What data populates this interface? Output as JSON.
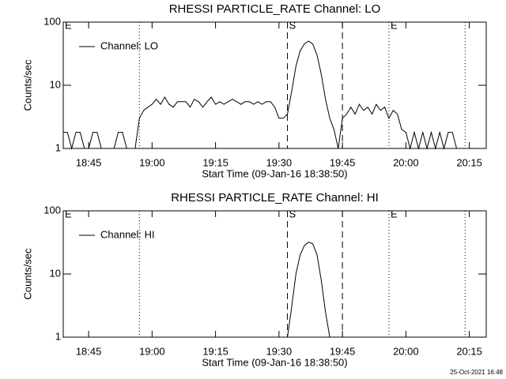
{
  "chart_data": [
    {
      "type": "line",
      "title": "RHESSI PARTICLE_RATE Channel: LO",
      "x_label": "Start Time (09-Jan-16 18:38:50)",
      "y_label": "Counts/sec",
      "log_y": true,
      "legend": "upper left",
      "xlim": [
        "18:39",
        "20:19"
      ],
      "xticks": [
        "18:45",
        "19:00",
        "19:15",
        "19:30",
        "19:45",
        "20:00",
        "20:15"
      ],
      "ylim": [
        1,
        100
      ],
      "yticks": [
        1,
        10,
        100
      ],
      "markers": [
        {
          "x": "18:39",
          "style": "none",
          "label": "E"
        },
        {
          "x": "18:57",
          "style": "dotted"
        },
        {
          "x": "19:32",
          "style": "dashed",
          "label": "S"
        },
        {
          "x": "19:45",
          "style": "dashed"
        },
        {
          "x": "19:56",
          "style": "dotted",
          "label": "E"
        },
        {
          "x": "20:14",
          "style": "dotted"
        }
      ],
      "x": [
        "18:39",
        "18:40",
        "18:41",
        "18:42",
        "18:43",
        "18:44",
        "18:45",
        "18:46",
        "18:47",
        "18:48",
        "18:49",
        "18:50",
        "18:51",
        "18:52",
        "18:53",
        "18:54",
        "18:55",
        "18:56",
        "18:57",
        "18:58",
        "18:59",
        "19:00",
        "19:01",
        "19:02",
        "19:03",
        "19:04",
        "19:05",
        "19:06",
        "19:07",
        "19:08",
        "19:09",
        "19:10",
        "19:11",
        "19:12",
        "19:13",
        "19:14",
        "19:15",
        "19:16",
        "19:17",
        "19:18",
        "19:19",
        "19:20",
        "19:21",
        "19:22",
        "19:23",
        "19:24",
        "19:25",
        "19:26",
        "19:27",
        "19:28",
        "19:29",
        "19:30",
        "19:31",
        "19:32",
        "19:33",
        "19:34",
        "19:35",
        "19:36",
        "19:37",
        "19:38",
        "19:39",
        "19:40",
        "19:41",
        "19:42",
        "19:43",
        "19:44",
        "19:45",
        "19:46",
        "19:47",
        "19:48",
        "19:49",
        "19:50",
        "19:51",
        "19:52",
        "19:53",
        "19:54",
        "19:55",
        "19:56",
        "19:57",
        "19:58",
        "19:59",
        "20:00",
        "20:01",
        "20:02",
        "20:03",
        "20:04",
        "20:05",
        "20:06",
        "20:07",
        "20:08",
        "20:09",
        "20:10",
        "20:11",
        "20:12",
        "20:13",
        "20:14",
        "20:15",
        "20:16",
        "20:17",
        "20:18",
        "20:19"
      ],
      "series": [
        {
          "name": "Channel: LO",
          "color": "#000000",
          "values": [
            1.8,
            1.8,
            1,
            1.8,
            1.8,
            1,
            1,
            1.8,
            1.8,
            1,
            1,
            1,
            1,
            1.8,
            1.8,
            1,
            1,
            1,
            3,
            4,
            4.5,
            5,
            6,
            5,
            6.5,
            5,
            4.5,
            5.5,
            5.5,
            5.5,
            4.5,
            6,
            5.5,
            4.5,
            5.5,
            6.5,
            5,
            5.5,
            5,
            5.5,
            6,
            5.5,
            5,
            5.5,
            5.5,
            5,
            5.5,
            5,
            5.5,
            5.5,
            4.5,
            3,
            3,
            3.5,
            8,
            20,
            35,
            45,
            50,
            45,
            30,
            15,
            6,
            3,
            2,
            1,
            3,
            3.5,
            4.5,
            3.5,
            5,
            4,
            4.5,
            3.5,
            5,
            4,
            4.5,
            3,
            4,
            3.5,
            2,
            1.8,
            1,
            1.8,
            1,
            1.8,
            1,
            1.8,
            1,
            1.8,
            1,
            1.8,
            1.8,
            1,
            1,
            1,
            1,
            1,
            1,
            1,
            1
          ]
        }
      ]
    },
    {
      "type": "line",
      "title": "RHESSI PARTICLE_RATE Channel: HI",
      "x_label": "Start Time (09-Jan-16 18:38:50)",
      "y_label": "Counts/sec",
      "log_y": true,
      "legend": "upper left",
      "xlim": [
        "18:39",
        "20:19"
      ],
      "xticks": [
        "18:45",
        "19:00",
        "19:15",
        "19:30",
        "19:45",
        "20:00",
        "20:15"
      ],
      "ylim": [
        1,
        100
      ],
      "yticks": [
        1,
        10,
        100
      ],
      "markers": [
        {
          "x": "18:39",
          "style": "none",
          "label": "E"
        },
        {
          "x": "18:57",
          "style": "dotted"
        },
        {
          "x": "19:32",
          "style": "dashed",
          "label": "S"
        },
        {
          "x": "19:45",
          "style": "dashed"
        },
        {
          "x": "19:56",
          "style": "dotted",
          "label": "E"
        },
        {
          "x": "20:14",
          "style": "dotted"
        }
      ],
      "x": [
        "19:32",
        "19:33",
        "19:34",
        "19:35",
        "19:36",
        "19:37",
        "19:38",
        "19:39",
        "19:40",
        "19:41",
        "19:42"
      ],
      "series": [
        {
          "name": "Channel: HI",
          "color": "#000000",
          "values": [
            1,
            3,
            10,
            20,
            28,
            32,
            30,
            20,
            8,
            2.5,
            1
          ]
        }
      ]
    }
  ],
  "footer": "25-Oct-2021 16:48"
}
